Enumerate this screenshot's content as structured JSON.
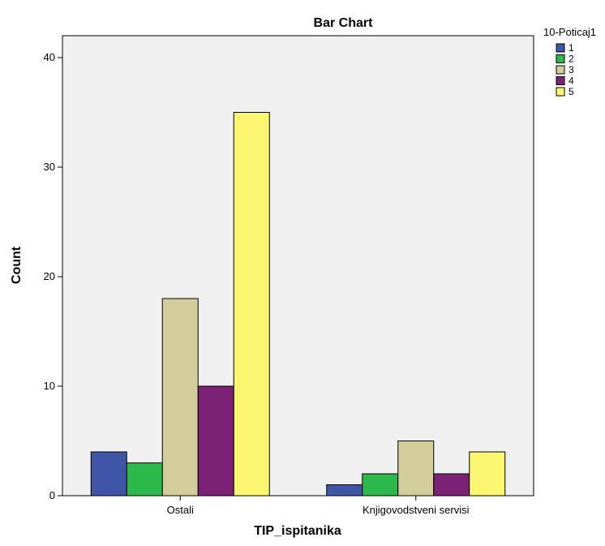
{
  "chart_data": {
    "type": "bar",
    "title": "Bar Chart",
    "xlabel": "TIP_ispitanika",
    "ylabel": "Count",
    "categories": [
      "Ostali",
      "Knjigovodstveni servisi"
    ],
    "legend_title": "10-Poticaj1",
    "legend_placement": "right",
    "ylim": [
      0,
      42
    ],
    "yticks": [
      0,
      10,
      20,
      30,
      40
    ],
    "grid": false,
    "series": [
      {
        "name": "1",
        "color": "#3f56a8",
        "values": [
          4,
          1
        ]
      },
      {
        "name": "2",
        "color": "#2cb84a",
        "values": [
          3,
          2
        ]
      },
      {
        "name": "3",
        "color": "#d3cd9b",
        "values": [
          18,
          5
        ]
      },
      {
        "name": "4",
        "color": "#7c2276",
        "values": [
          10,
          2
        ]
      },
      {
        "name": "5",
        "color": "#fbf771",
        "values": [
          35,
          4
        ]
      }
    ],
    "plot_background": "#f0f0f0"
  }
}
